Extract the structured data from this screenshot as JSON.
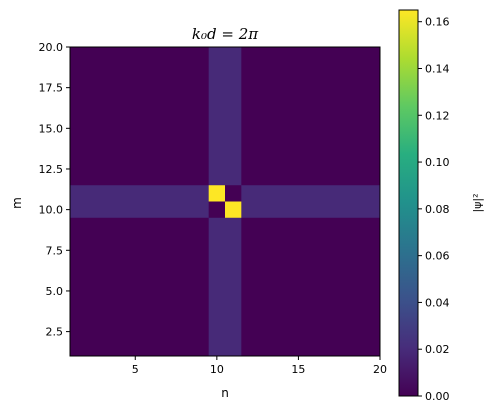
{
  "chart_data": {
    "type": "heatmap",
    "title": "k₀d = 2π",
    "xlabel": "n",
    "ylabel": "m",
    "xlim": [
      1,
      20
    ],
    "ylim": [
      1,
      20
    ],
    "x_ticks": [
      "5",
      "10",
      "15",
      "20"
    ],
    "x_tick_values": [
      5,
      10,
      15,
      20
    ],
    "y_ticks": [
      "2.5",
      "5.0",
      "7.5",
      "10.0",
      "12.5",
      "15.0",
      "17.5",
      "20.0"
    ],
    "y_tick_values": [
      2.5,
      5.0,
      7.5,
      10.0,
      12.5,
      15.0,
      17.5,
      20.0
    ],
    "colormap": "viridis",
    "background_value": 0.0,
    "colorbar": {
      "label": "|ψ|²",
      "min": 0.0,
      "max": 0.165,
      "ticks": [
        "0.00",
        "0.02",
        "0.04",
        "0.06",
        "0.08",
        "0.10",
        "0.12",
        "0.14",
        "0.16"
      ],
      "tick_values": [
        0.0,
        0.02,
        0.04,
        0.06,
        0.08,
        0.1,
        0.12,
        0.14,
        0.16
      ]
    },
    "bands": [
      {
        "orientation": "vertical",
        "n_range": [
          9.5,
          11.5
        ],
        "value": 0.019
      },
      {
        "orientation": "horizontal",
        "m_range": [
          9.5,
          11.5
        ],
        "value": 0.019
      }
    ],
    "cells": [
      {
        "n": 10,
        "m": 11,
        "value": 0.165
      },
      {
        "n": 11,
        "m": 10,
        "value": 0.165
      },
      {
        "n": 11,
        "m": 11,
        "value": 0.0
      },
      {
        "n": 10,
        "m": 10,
        "value": 0.0
      }
    ]
  }
}
